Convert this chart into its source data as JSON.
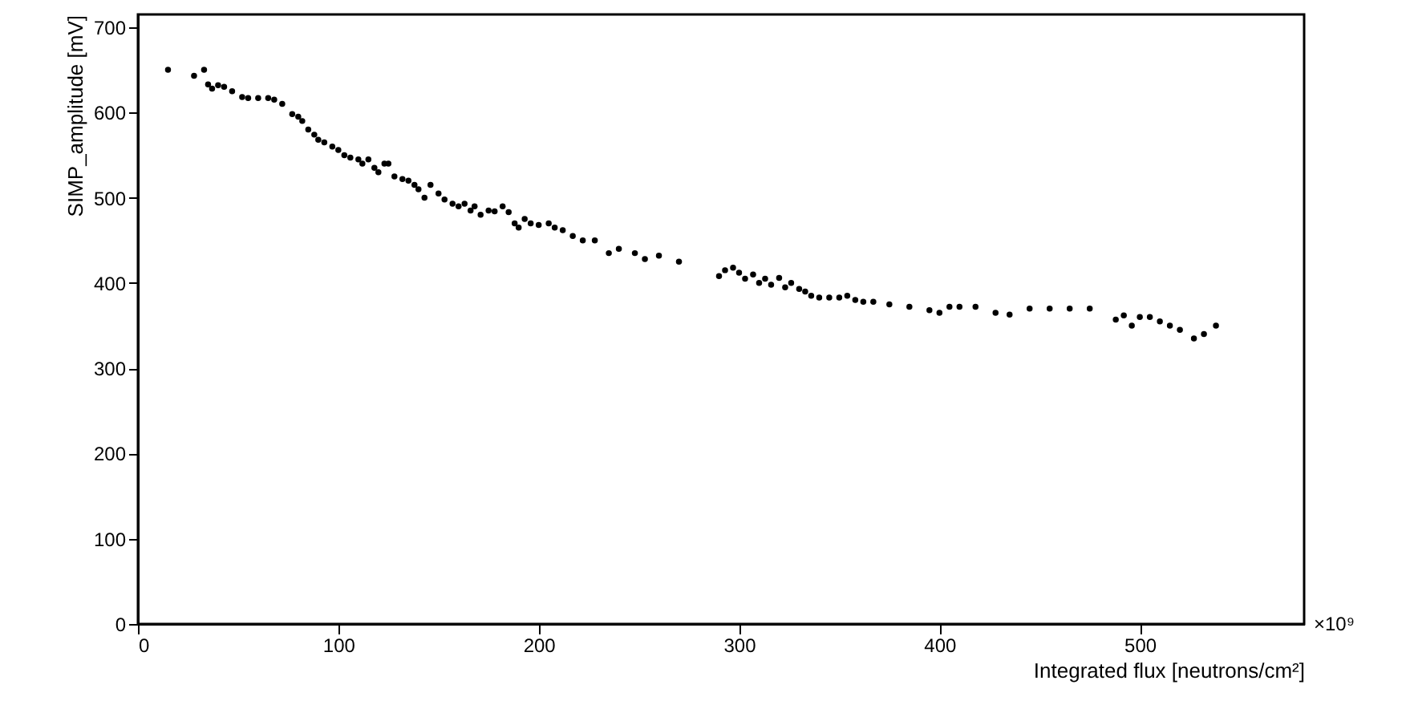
{
  "chart_data": {
    "type": "scatter",
    "xlabel": "Integrated flux [neutrons/cm²]",
    "ylabel": "SIMP_amplitude [mV]",
    "annotations": [
      "×10⁹"
    ],
    "xlim": [
      0,
      582
    ],
    "ylim": [
      0,
      715
    ],
    "xticks": [
      0,
      100,
      200,
      300,
      400,
      500
    ],
    "yticks": [
      0,
      100,
      200,
      300,
      400,
      500,
      600,
      700
    ],
    "grid": false,
    "marker": "circle",
    "series": [
      {
        "color": "#000000",
        "x": [
          15,
          28,
          33,
          35,
          37,
          40,
          43,
          47,
          52,
          55,
          60,
          65,
          68,
          72,
          77,
          80,
          82,
          85,
          88,
          90,
          93,
          97,
          100,
          103,
          106,
          110,
          112,
          115,
          118,
          120,
          123,
          125,
          128,
          132,
          135,
          138,
          140,
          143,
          146,
          150,
          153,
          157,
          160,
          163,
          166,
          168,
          171,
          175,
          178,
          182,
          185,
          188,
          190,
          193,
          196,
          200,
          205,
          208,
          212,
          217,
          222,
          228,
          235,
          240,
          248,
          253,
          260,
          270,
          290,
          293,
          297,
          300,
          303,
          307,
          310,
          313,
          316,
          320,
          323,
          326,
          330,
          333,
          336,
          340,
          345,
          350,
          354,
          358,
          362,
          367,
          375,
          385,
          395,
          400,
          405,
          410,
          418,
          428,
          435,
          445,
          455,
          465,
          475,
          488,
          492,
          496,
          500,
          505,
          510,
          515,
          520,
          527,
          532,
          538
        ],
        "values": [
          650,
          643,
          650,
          633,
          628,
          632,
          630,
          625,
          618,
          617,
          617,
          617,
          615,
          610,
          598,
          595,
          590,
          580,
          574,
          568,
          565,
          560,
          556,
          550,
          547,
          545,
          540,
          545,
          535,
          530,
          540,
          540,
          525,
          522,
          520,
          515,
          510,
          500,
          515,
          505,
          498,
          493,
          490,
          493,
          485,
          490,
          480,
          485,
          484,
          490,
          483,
          470,
          465,
          475,
          470,
          468,
          470,
          465,
          462,
          455,
          450,
          450,
          435,
          440,
          435,
          428,
          432,
          425,
          408,
          415,
          418,
          412,
          405,
          410,
          400,
          405,
          398,
          406,
          395,
          400,
          393,
          390,
          385,
          383,
          383,
          383,
          385,
          380,
          378,
          378,
          375,
          372,
          368,
          365,
          372,
          372,
          372,
          365,
          363,
          370,
          370,
          370,
          370,
          357,
          362,
          350,
          360,
          360,
          355,
          350,
          345,
          335,
          340,
          350
        ]
      }
    ]
  }
}
